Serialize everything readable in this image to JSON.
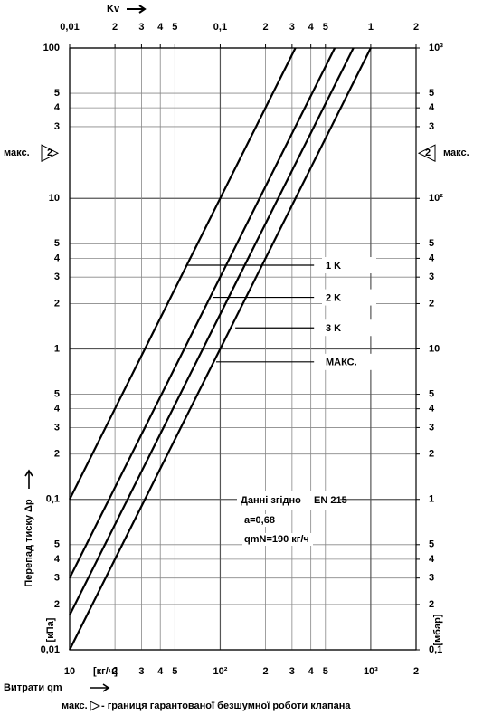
{
  "chart_data": {
    "type": "line",
    "log_x": true,
    "log_y": true,
    "grid": true,
    "x_axis_label": "Витрати qm",
    "x_unit": "[кг/ч]",
    "x2_axis_label": "Kv",
    "y_axis_label": "Перепад тиску Δp",
    "y_unit": "[кПа]",
    "y2_unit": "[мбар]",
    "xlim": [
      10,
      2000
    ],
    "xticks": [
      10,
      {
        "value": 20,
        "label": "2"
      },
      {
        "value": 30,
        "label": "3"
      },
      {
        "value": 40,
        "label": "4"
      },
      {
        "value": 50,
        "label": "5"
      },
      {
        "value": 100,
        "label": "10²"
      },
      {
        "value": 200,
        "label": "2"
      },
      {
        "value": 300,
        "label": "3"
      },
      {
        "value": 400,
        "label": "4"
      },
      {
        "value": 500,
        "label": "5"
      },
      {
        "value": 1000,
        "label": "10³"
      },
      {
        "value": 2000,
        "label": "2"
      }
    ],
    "x2lim": [
      0.01,
      2
    ],
    "x2ticks": [
      {
        "value": 0.01,
        "label": "0,01"
      },
      {
        "value": 0.02,
        "label": "2"
      },
      {
        "value": 0.03,
        "label": "3"
      },
      {
        "value": 0.04,
        "label": "4"
      },
      {
        "value": 0.05,
        "label": "5"
      },
      {
        "value": 0.1,
        "label": "0,1"
      },
      {
        "value": 0.2,
        "label": "2"
      },
      {
        "value": 0.3,
        "label": "3"
      },
      {
        "value": 0.4,
        "label": "4"
      },
      {
        "value": 0.5,
        "label": "5"
      },
      1,
      2
    ],
    "ylim": [
      0.01,
      100
    ],
    "yticks": [
      {
        "value": 0.01,
        "label": "0,01"
      },
      {
        "value": 0.02,
        "label": "2"
      },
      {
        "value": 0.03,
        "label": "3"
      },
      {
        "value": 0.04,
        "label": "4"
      },
      {
        "value": 0.05,
        "label": "5"
      },
      {
        "value": 0.1,
        "label": "0,1"
      },
      {
        "value": 0.2,
        "label": "2"
      },
      {
        "value": 0.3,
        "label": "3"
      },
      {
        "value": 0.4,
        "label": "4"
      },
      {
        "value": 0.5,
        "label": "5"
      },
      1,
      2,
      3,
      4,
      5,
      10,
      {
        "value": 30,
        "label": "3"
      },
      {
        "value": 40,
        "label": "4"
      },
      {
        "value": 50,
        "label": "5"
      },
      100
    ],
    "y2lim": [
      0.1,
      1000
    ],
    "y2ticks": [
      {
        "value": 0.1,
        "label": "0,1"
      },
      {
        "value": 0.2,
        "label": "2"
      },
      {
        "value": 0.3,
        "label": "3"
      },
      {
        "value": 0.4,
        "label": "4"
      },
      {
        "value": 0.5,
        "label": "5"
      },
      1,
      {
        "value": 2,
        "label": "2"
      },
      3,
      4,
      5,
      10,
      {
        "value": 20,
        "label": "2"
      },
      {
        "value": 30,
        "label": "3"
      },
      {
        "value": 40,
        "label": "4"
      },
      {
        "value": 50,
        "label": "5"
      },
      {
        "value": 100,
        "label": "10²"
      },
      {
        "value": 300,
        "label": "3"
      },
      {
        "value": 400,
        "label": "4"
      },
      {
        "value": 500,
        "label": "5"
      },
      {
        "value": 1000,
        "label": "10³"
      }
    ],
    "series": [
      {
        "color": "#000000",
        "x": [
          10,
          316
        ],
        "values": [
          0.1,
          100
        ]
      },
      {
        "color": "#000000",
        "x": [
          10,
          577
        ],
        "values": [
          0.03,
          100
        ]
      },
      {
        "color": "#000000",
        "x": [
          10,
          767
        ],
        "values": [
          0.017,
          100
        ]
      },
      {
        "color": "#000000",
        "x": [
          10,
          1000
        ],
        "values": [
          0.01,
          100
        ]
      }
    ],
    "markers": [
      {
        "label": "1 K",
        "y": 3.6,
        "x": [
          60,
          420
        ]
      },
      {
        "label": "2 K",
        "y": 2.2,
        "x": [
          89,
          420
        ]
      },
      {
        "label": "3 K",
        "y": 1.38,
        "x": [
          126,
          420
        ]
      },
      {
        "label": "МАКС.",
        "y": 0.82,
        "x": [
          94,
          420
        ]
      }
    ],
    "max_marker": {
      "label": "макс.",
      "symbol": "2",
      "y": 20
    },
    "annotation": {
      "title": "Данні згідно",
      "standard": "EN 215",
      "lines": [
        "a=0,68",
        "qmN=190 кг/ч"
      ]
    },
    "footnote": {
      "label": "макс.",
      "text": "- границя гарантованої безшумної роботи клапана"
    }
  }
}
